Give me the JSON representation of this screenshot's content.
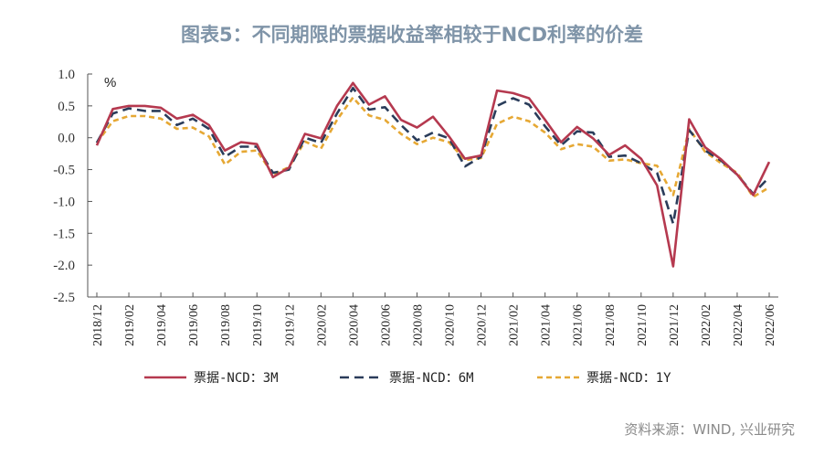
{
  "title": "图表5：不同期限的票据收益率相较于NCD利率的价差",
  "source": "资料来源：WIND, 兴业研究",
  "chart_data": {
    "type": "line",
    "ylabel": "%",
    "ylim": [
      -2.5,
      1.0
    ],
    "yticks": [
      1.0,
      0.5,
      0.0,
      -0.5,
      -1.0,
      -1.5,
      -2.0,
      -2.5
    ],
    "ytick_labels": [
      "1.0",
      "0.5",
      "0.0",
      "-0.5",
      "-1.0",
      "-1.5",
      "-2.0",
      "-2.5"
    ],
    "xtick_labels": [
      "2018/12",
      "2019/02",
      "2019/04",
      "2019/06",
      "2019/08",
      "2019/10",
      "2019/12",
      "2020/02",
      "2020/04",
      "2020/06",
      "2020/08",
      "2020/10",
      "2020/12",
      "2021/02",
      "2021/04",
      "2021/06",
      "2021/08",
      "2021/10",
      "2021/12",
      "2022/02",
      "2022/04",
      "2022/06"
    ],
    "x": [
      "2018/12",
      "2019/01",
      "2019/02",
      "2019/03",
      "2019/04",
      "2019/05",
      "2019/06",
      "2019/07",
      "2019/08",
      "2019/09",
      "2019/10",
      "2019/11",
      "2019/12",
      "2020/01",
      "2020/02",
      "2020/03",
      "2020/04",
      "2020/05",
      "2020/06",
      "2020/07",
      "2020/08",
      "2020/09",
      "2020/10",
      "2020/11",
      "2020/12",
      "2021/01",
      "2021/02",
      "2021/03",
      "2021/04",
      "2021/05",
      "2021/06",
      "2021/07",
      "2021/08",
      "2021/09",
      "2021/10",
      "2021/11",
      "2021/12",
      "2022/01",
      "2022/02",
      "2022/03",
      "2022/04",
      "2022/05",
      "2022/06"
    ],
    "legend_position": "bottom",
    "grid": false,
    "series": [
      {
        "name": "票据-NCD：3M",
        "color": "#b5394f",
        "dash": "solid",
        "values": [
          -0.12,
          0.45,
          0.5,
          0.5,
          0.47,
          0.3,
          0.36,
          0.2,
          -0.2,
          -0.07,
          -0.1,
          -0.62,
          -0.47,
          0.06,
          -0.01,
          0.5,
          0.86,
          0.52,
          0.65,
          0.28,
          0.16,
          0.33,
          0.02,
          -0.33,
          -0.28,
          0.74,
          0.7,
          0.62,
          0.28,
          -0.07,
          0.17,
          -0.01,
          -0.27,
          -0.12,
          -0.33,
          -0.75,
          -2.02,
          0.29,
          -0.15,
          -0.34,
          -0.58,
          -0.9,
          -0.38
        ]
      },
      {
        "name": "票据-NCD：6M",
        "color": "#2a3c5a",
        "dash": "long",
        "values": [
          -0.08,
          0.38,
          0.46,
          0.42,
          0.42,
          0.2,
          0.3,
          0.14,
          -0.3,
          -0.14,
          -0.14,
          -0.55,
          -0.5,
          0.0,
          -0.08,
          0.38,
          0.78,
          0.44,
          0.48,
          0.2,
          -0.04,
          0.08,
          -0.01,
          -0.45,
          -0.3,
          0.5,
          0.62,
          0.52,
          0.18,
          -0.12,
          0.1,
          0.08,
          -0.3,
          -0.28,
          -0.4,
          -0.55,
          -1.35,
          0.12,
          -0.2,
          -0.36,
          -0.58,
          -0.88,
          -0.62
        ]
      },
      {
        "name": "票据-NCD：1Y",
        "color": "#e6a834",
        "dash": "short",
        "values": [
          -0.08,
          0.26,
          0.34,
          0.34,
          0.3,
          0.14,
          0.16,
          0.02,
          -0.42,
          -0.22,
          -0.2,
          -0.58,
          -0.46,
          -0.06,
          -0.17,
          0.28,
          0.63,
          0.35,
          0.28,
          0.06,
          -0.1,
          0.0,
          -0.07,
          -0.35,
          -0.32,
          0.22,
          0.33,
          0.26,
          0.08,
          -0.18,
          -0.1,
          -0.14,
          -0.36,
          -0.34,
          -0.4,
          -0.44,
          -0.9,
          0.14,
          -0.22,
          -0.4,
          -0.55,
          -0.93,
          -0.78
        ]
      }
    ]
  }
}
